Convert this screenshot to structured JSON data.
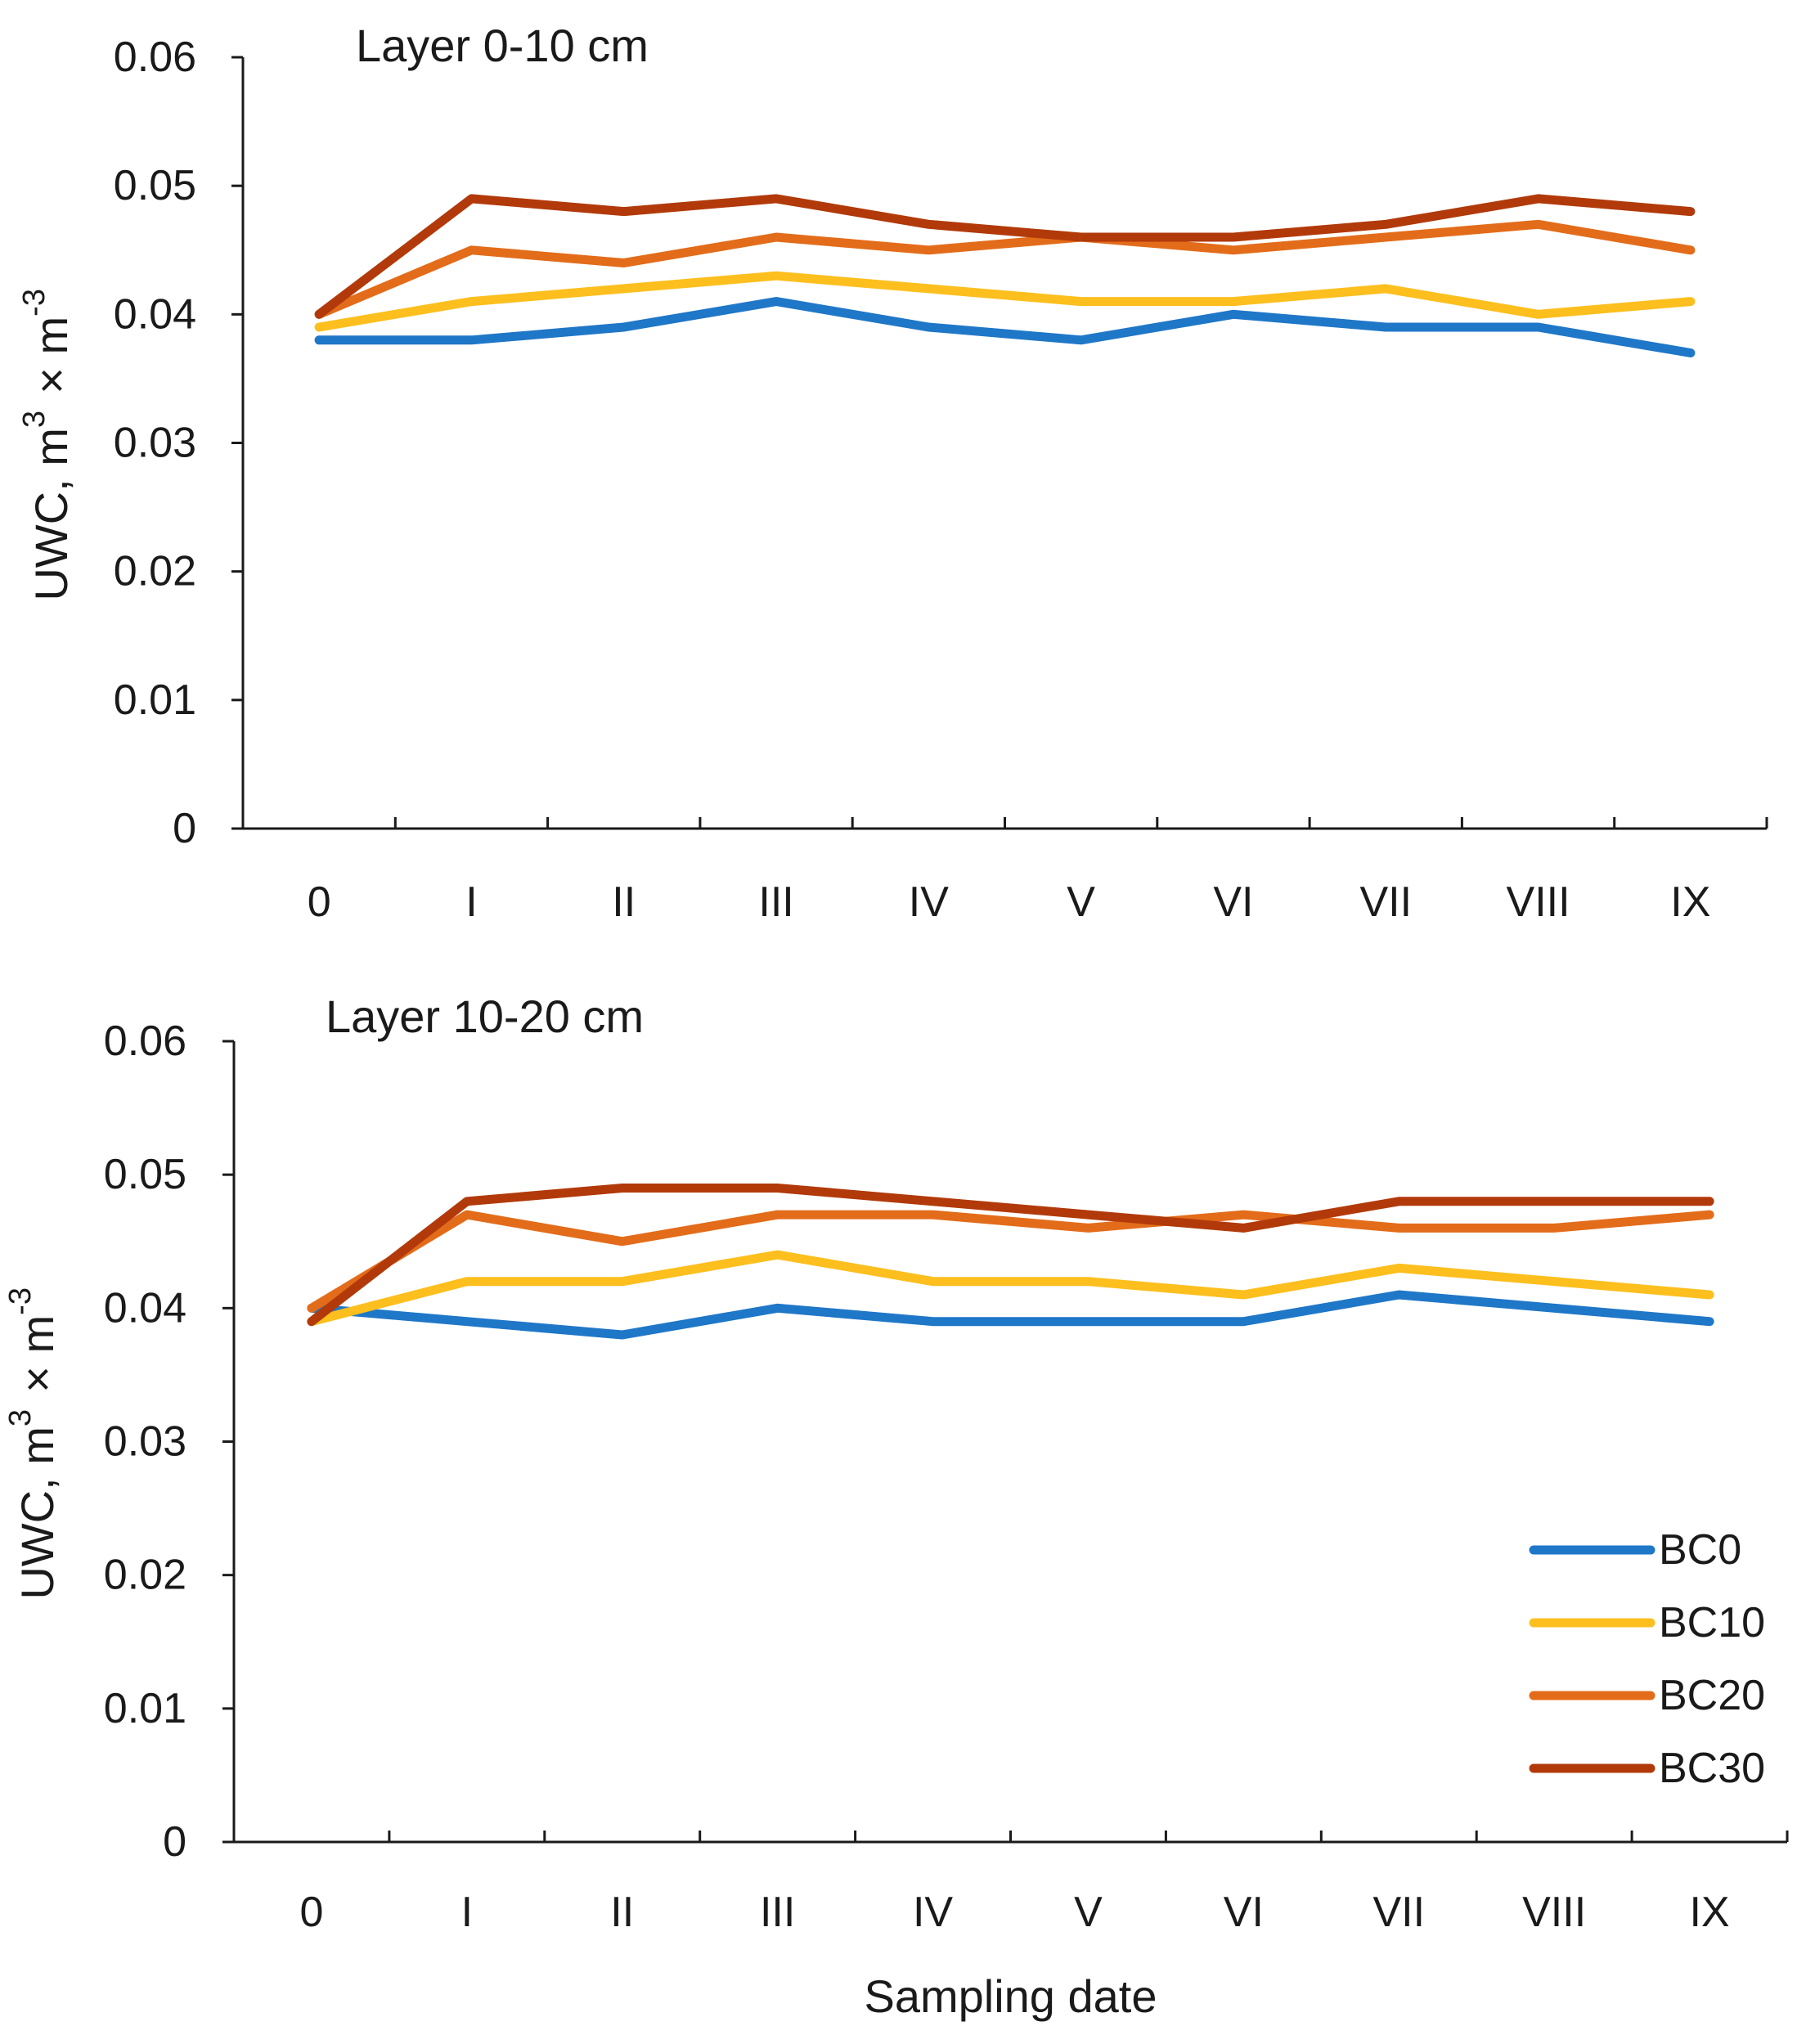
{
  "chart_data": [
    {
      "type": "line",
      "title": "Layer 0-10 cm",
      "xlabel": "",
      "ylabel": "UWC, m3 × m-3",
      "ylim": [
        0,
        0.06
      ],
      "yticks": [
        "0",
        "0.01",
        "0.02",
        "0.03",
        "0.04",
        "0.05",
        "0.06"
      ],
      "categories": [
        "0",
        "I",
        "II",
        "III",
        "IV",
        "V",
        "VI",
        "VII",
        "VIII",
        "IX"
      ],
      "series": [
        {
          "name": "BC0",
          "color": "#1f77c8",
          "values": [
            0.038,
            0.038,
            0.039,
            0.041,
            0.039,
            0.038,
            0.04,
            0.039,
            0.039,
            0.037
          ]
        },
        {
          "name": "BC10",
          "color": "#fcbf1e",
          "values": [
            0.039,
            0.041,
            0.042,
            0.043,
            0.042,
            0.041,
            0.041,
            0.042,
            0.04,
            0.041
          ]
        },
        {
          "name": "BC20",
          "color": "#e36c1a",
          "values": [
            0.04,
            0.045,
            0.044,
            0.046,
            0.045,
            0.046,
            0.045,
            0.046,
            0.047,
            0.045
          ]
        },
        {
          "name": "BC30",
          "color": "#b23a0a",
          "values": [
            0.04,
            0.049,
            0.048,
            0.049,
            0.047,
            0.046,
            0.046,
            0.047,
            0.049,
            0.048
          ]
        }
      ]
    },
    {
      "type": "line",
      "title": "Layer 10-20 cm",
      "xlabel": "Sampling date",
      "ylabel": "UWC, m3 × m-3",
      "ylim": [
        0,
        0.06
      ],
      "yticks": [
        "0",
        "0.01",
        "0.02",
        "0.03",
        "0.04",
        "0.05",
        "0.06"
      ],
      "categories": [
        "0",
        "I",
        "II",
        "III",
        "IV",
        "V",
        "VI",
        "VII",
        "VIII",
        "IX"
      ],
      "legend": "bottom-right",
      "series": [
        {
          "name": "BC0",
          "color": "#1f77c8",
          "values": [
            0.04,
            0.039,
            0.038,
            0.04,
            0.039,
            0.039,
            0.039,
            0.041,
            0.04,
            0.039
          ]
        },
        {
          "name": "BC10",
          "color": "#fcbf1e",
          "values": [
            0.039,
            0.042,
            0.042,
            0.044,
            0.042,
            0.042,
            0.041,
            0.043,
            0.042,
            0.041
          ]
        },
        {
          "name": "BC20",
          "color": "#e36c1a",
          "values": [
            0.04,
            0.047,
            0.045,
            0.047,
            0.047,
            0.046,
            0.047,
            0.046,
            0.046,
            0.047
          ]
        },
        {
          "name": "BC30",
          "color": "#b23a0a",
          "values": [
            0.039,
            0.048,
            0.049,
            0.049,
            0.048,
            0.047,
            0.046,
            0.048,
            0.048,
            0.048
          ]
        }
      ]
    }
  ]
}
